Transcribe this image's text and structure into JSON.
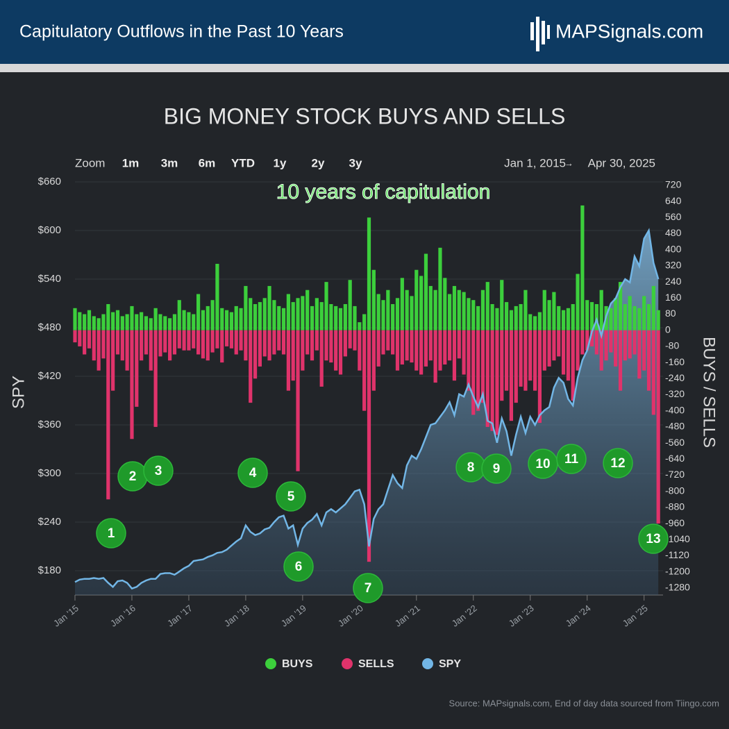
{
  "header": {
    "title": "Capitulatory Outflows in the Past 10 Years",
    "logo": "MAPSignals.com"
  },
  "controls": {
    "zoom": "Zoom",
    "buttons": [
      "1m",
      "3m",
      "6m",
      "YTD",
      "1y",
      "2y",
      "3y"
    ],
    "from": "Jan 1, 2015",
    "separator": "→",
    "to": "Apr 30, 2025"
  },
  "chart_data": {
    "type": "bar-line",
    "title": "BIG MONEY STOCK BUYS AND SELLS",
    "headline": "10 years of capitulation",
    "ylabel": "SPY",
    "y2label": "BUYS / SELLS",
    "x": [
      "2015-01",
      "2015-02",
      "2015-03",
      "2015-04",
      "2015-05",
      "2015-06",
      "2015-07",
      "2015-08",
      "2015-09",
      "2015-10",
      "2015-11",
      "2015-12",
      "2016-01",
      "2016-02",
      "2016-03",
      "2016-04",
      "2016-05",
      "2016-06",
      "2016-07",
      "2016-08",
      "2016-09",
      "2016-10",
      "2016-11",
      "2016-12",
      "2017-01",
      "2017-02",
      "2017-03",
      "2017-04",
      "2017-05",
      "2017-06",
      "2017-07",
      "2017-08",
      "2017-09",
      "2017-10",
      "2017-11",
      "2017-12",
      "2018-01",
      "2018-02",
      "2018-03",
      "2018-04",
      "2018-05",
      "2018-06",
      "2018-07",
      "2018-08",
      "2018-09",
      "2018-10",
      "2018-11",
      "2018-12",
      "2019-01",
      "2019-02",
      "2019-03",
      "2019-04",
      "2019-05",
      "2019-06",
      "2019-07",
      "2019-08",
      "2019-09",
      "2019-10",
      "2019-11",
      "2019-12",
      "2020-01",
      "2020-02",
      "2020-03",
      "2020-04",
      "2020-05",
      "2020-06",
      "2020-07",
      "2020-08",
      "2020-09",
      "2020-10",
      "2020-11",
      "2020-12",
      "2021-01",
      "2021-02",
      "2021-03",
      "2021-04",
      "2021-05",
      "2021-06",
      "2021-07",
      "2021-08",
      "2021-09",
      "2021-10",
      "2021-11",
      "2021-12",
      "2022-01",
      "2022-02",
      "2022-03",
      "2022-04",
      "2022-05",
      "2022-06",
      "2022-07",
      "2022-08",
      "2022-09",
      "2022-10",
      "2022-11",
      "2022-12",
      "2023-01",
      "2023-02",
      "2023-03",
      "2023-04",
      "2023-05",
      "2023-06",
      "2023-07",
      "2023-08",
      "2023-09",
      "2023-10",
      "2023-11",
      "2023-12",
      "2024-01",
      "2024-02",
      "2024-03",
      "2024-04",
      "2024-05",
      "2024-06",
      "2024-07",
      "2024-08",
      "2024-09",
      "2024-10",
      "2024-11",
      "2024-12",
      "2025-01",
      "2025-02",
      "2025-03",
      "2025-04"
    ],
    "series": [
      {
        "name": "BUYS",
        "color": "#3ccf3c",
        "axis": "y2",
        "values": [
          110,
          90,
          80,
          100,
          70,
          60,
          80,
          130,
          90,
          100,
          70,
          80,
          120,
          80,
          90,
          70,
          60,
          110,
          80,
          70,
          60,
          80,
          150,
          100,
          90,
          80,
          180,
          100,
          120,
          150,
          330,
          110,
          100,
          90,
          120,
          110,
          220,
          160,
          130,
          140,
          160,
          220,
          150,
          120,
          110,
          180,
          140,
          160,
          170,
          200,
          120,
          160,
          140,
          240,
          130,
          120,
          110,
          130,
          250,
          120,
          40,
          80,
          560,
          300,
          180,
          150,
          200,
          130,
          160,
          260,
          200,
          170,
          300,
          270,
          380,
          220,
          200,
          410,
          260,
          180,
          220,
          200,
          190,
          160,
          150,
          120,
          200,
          240,
          130,
          110,
          250,
          140,
          100,
          120,
          130,
          200,
          80,
          70,
          90,
          200,
          150,
          190,
          120,
          100,
          110,
          130,
          280,
          620,
          150,
          140,
          130,
          200,
          120,
          110,
          160,
          240,
          130,
          170,
          120,
          110,
          170,
          130,
          220,
          100
        ]
      },
      {
        "name": "SELLS",
        "color": "#e0336b",
        "axis": "y2",
        "values": [
          -60,
          -80,
          -120,
          -90,
          -150,
          -200,
          -140,
          -840,
          -300,
          -120,
          -150,
          -200,
          -540,
          -380,
          -150,
          -120,
          -200,
          -480,
          -130,
          -110,
          -150,
          -120,
          -90,
          -100,
          -100,
          -90,
          -120,
          -140,
          -150,
          -110,
          -90,
          -160,
          -80,
          -90,
          -120,
          -100,
          -150,
          -360,
          -240,
          -180,
          -130,
          -150,
          -120,
          -100,
          -120,
          -300,
          -250,
          -700,
          -200,
          -120,
          -150,
          -100,
          -280,
          -150,
          -160,
          -200,
          -220,
          -130,
          -90,
          -100,
          -200,
          -400,
          -1150,
          -300,
          -180,
          -120,
          -100,
          -120,
          -200,
          -170,
          -150,
          -160,
          -200,
          -220,
          -180,
          -150,
          -260,
          -200,
          -170,
          -150,
          -250,
          -140,
          -220,
          -300,
          -420,
          -400,
          -360,
          -480,
          -500,
          -520,
          -350,
          -300,
          -450,
          -360,
          -280,
          -300,
          -250,
          -300,
          -460,
          -200,
          -180,
          -150,
          -130,
          -220,
          -250,
          -350,
          -200,
          -120,
          -100,
          -80,
          -120,
          -200,
          -150,
          -110,
          -180,
          -300,
          -150,
          -140,
          -120,
          -240,
          -200,
          -300,
          -420,
          -960
        ]
      },
      {
        "name": "SPY",
        "color": "#72b6e6",
        "values": [
          166,
          169,
          170,
          170,
          171,
          170,
          171,
          165,
          160,
          167,
          168,
          165,
          158,
          160,
          165,
          168,
          170,
          170,
          176,
          177,
          177,
          175,
          179,
          183,
          186,
          192,
          193,
          194,
          197,
          199,
          202,
          203,
          206,
          211,
          216,
          220,
          236,
          228,
          224,
          226,
          231,
          233,
          240,
          246,
          248,
          232,
          236,
          212,
          232,
          239,
          243,
          250,
          236,
          252,
          256,
          252,
          257,
          262,
          270,
          278,
          280,
          262,
          210,
          244,
          256,
          262,
          280,
          298,
          288,
          282,
          310,
          322,
          318,
          330,
          345,
          360,
          362,
          370,
          378,
          388,
          372,
          398,
          395,
          410,
          395,
          382,
          398,
          365,
          362,
          338,
          368,
          352,
          322,
          348,
          370,
          350,
          370,
          360,
          372,
          378,
          382,
          406,
          418,
          412,
          392,
          384,
          418,
          440,
          452,
          475,
          490,
          470,
          494,
          510,
          516,
          530,
          540,
          536,
          568,
          556,
          590,
          600,
          560,
          540
        ]
      }
    ],
    "xlim": [
      "2015-01",
      "2025-05"
    ],
    "xticks": [
      {
        "value": "2015-01",
        "label": "Jan '15"
      },
      {
        "value": "2016-01",
        "label": "Jan '16"
      },
      {
        "value": "2017-01",
        "label": "Jan '17"
      },
      {
        "value": "2018-01",
        "label": "Jan '18"
      },
      {
        "value": "2019-01",
        "label": "Jan '19"
      },
      {
        "value": "2020-01",
        "label": "Jan '20"
      },
      {
        "value": "2021-01",
        "label": "Jan '21"
      },
      {
        "value": "2022-01",
        "label": "Jan '22"
      },
      {
        "value": "2023-01",
        "label": "Jan '23"
      },
      {
        "value": "2024-01",
        "label": "Jan '24"
      },
      {
        "value": "2025-01",
        "label": "Jan '25"
      }
    ],
    "ylim": [
      150,
      660
    ],
    "yticks": [
      {
        "value": 180,
        "label": "$180"
      },
      {
        "value": 240,
        "label": "$240"
      },
      {
        "value": 300,
        "label": "$300"
      },
      {
        "value": 360,
        "label": "$360"
      },
      {
        "value": 420,
        "label": "$420"
      },
      {
        "value": 480,
        "label": "$480"
      },
      {
        "value": 540,
        "label": "$540"
      },
      {
        "value": 600,
        "label": "$600"
      },
      {
        "value": 660,
        "label": "$660"
      }
    ],
    "y2lim": [
      -1315,
      737
    ],
    "y2ticks": [
      720,
      640,
      560,
      480,
      400,
      320,
      240,
      160,
      80,
      0,
      -80,
      -160,
      -240,
      -320,
      -400,
      -480,
      -560,
      -640,
      -720,
      -800,
      -880,
      -960,
      -1040,
      -1120,
      -1200,
      -1280
    ],
    "grid": true,
    "annotations": [
      "1",
      "2",
      "3",
      "4",
      "5",
      "6",
      "7",
      "8",
      "9",
      "10",
      "11",
      "12",
      "13"
    ],
    "source": "Source: MAPsignals.com, End of day data sourced from Tiingo.com"
  }
}
